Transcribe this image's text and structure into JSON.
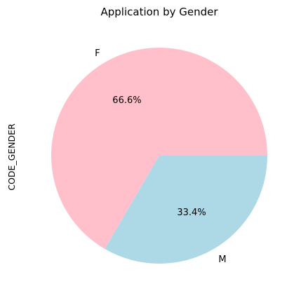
{
  "chart_data": {
    "type": "pie",
    "title": "Application by Gender",
    "ylabel": "CODE_GENDER",
    "labels": [
      "F",
      "M"
    ],
    "values": [
      66.6,
      33.4
    ],
    "percent_labels": [
      "66.6%",
      "33.4%"
    ],
    "colors": [
      "#ffc0cb",
      "#add8e6"
    ],
    "start_angle_deg": 0,
    "direction": "counterclockwise"
  }
}
